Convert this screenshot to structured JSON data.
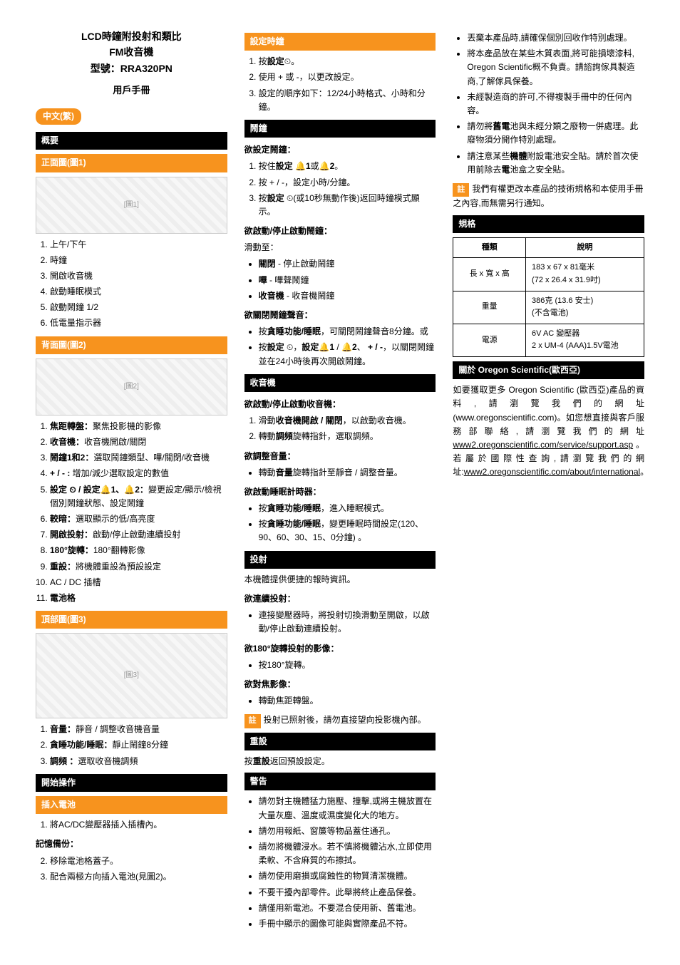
{
  "header": {
    "title": "LCD時鐘附投射和類比",
    "subtitle": "FM收音機",
    "model": "型號：RRA320PN",
    "manual": "用戶手冊"
  },
  "lang_tag": "中文(繁)",
  "col1": {
    "overview": "概要",
    "front_view": "正面圖(圖1)",
    "front_list": [
      "上午/下午",
      "時鐘",
      "開啟收音機",
      "啟動睡眠模式",
      "啟動鬧鐘 1/2",
      "低電量指示器"
    ],
    "back_view": "背面圖(圖2)",
    "back_list": [
      "焦距轉盤：聚焦投影機的影像",
      "收音機：收音機開啟/關閉",
      "鬧鐘1和2：選取鬧鐘類型、嗶/關閉/收音機",
      "+ / - : 增加/減少選取設定的數值",
      "設定 ⏲ / 設定🔔1、🔔2：變更設定/顯示/檢視個別鬧鐘狀態、設定鬧鐘",
      "較暗：選取顯示的低/高亮度",
      "開啟投射：啟動/停止啟動連續投射",
      "180°旋轉：180°翻轉影像",
      "重設：將機體重設為預設設定",
      "AC / DC 插槽",
      "電池格"
    ],
    "top_view": "頂部圖(圖3)",
    "top_list": [
      "音量：靜音 / 調整收音機音量",
      "貪睡功能/睡眠：靜止鬧鐘8分鐘",
      "調頻 ：選取收音機調頻"
    ],
    "start": "開始操作",
    "insert_battery": "插入電池",
    "battery_steps": [
      "將AC/DC變壓器插入插槽內。"
    ],
    "memory_backup_title": "記憶備份：",
    "memory_backup": [
      "移除電池格蓋子。",
      "配合兩極方向插入電池(見圖2)。"
    ]
  },
  "col2": {
    "set_clock": "設定時鐘",
    "set_clock_steps": [
      "按設定⏲。",
      "使用 + 或 -，以更改設定。",
      "設定的順序如下：12/24小時格式、小時和分鐘。"
    ],
    "alarm": "鬧鐘",
    "set_alarm_title": "欲設定鬧鐘：",
    "set_alarm_steps": [
      "按住設定 🔔1或🔔2。",
      "按 + / -，設定小時/分鐘。",
      "按設定 ⏲(或10秒無動作後)返回時鐘模式顯示。"
    ],
    "toggle_alarm_title": "欲啟動/停止啟動鬧鐘：",
    "slide_to": "滑動至：",
    "alarm_modes": [
      "關閉 - 停止啟動鬧鐘",
      "嗶 - 嗶聲鬧鐘",
      "收音機 - 收音機鬧鐘"
    ],
    "turn_off_sound_title": "欲關閉鬧鐘聲音：",
    "turn_off_sound": [
      "按貪睡功能/睡眠，可關閉鬧鐘聲音8分鐘。或",
      "按設定 ⏲，設定🔔1 / 🔔2、 + / -，以關閉鬧鐘並在24小時後再次開啟鬧鐘。"
    ],
    "radio": "收音機",
    "radio_toggle_title": "欲啟動/停止啟動收音機：",
    "radio_steps": [
      "滑動收音機開啟 / 關閉，以啟動收音機。",
      "轉動調頻旋轉指針，選取調頻。"
    ],
    "volume_title": "欲調整音量：",
    "volume_item": "轉動音量旋轉指針至靜音 / 調整音量。",
    "sleep_timer_title": "欲啟動睡眠計時器：",
    "sleep_timer": [
      "按貪睡功能/睡眠，進入睡眠模式。",
      "按貪睡功能/睡眠，變更睡眠時間設定(120、90、60、30、15、0分鐘) 。"
    ],
    "projection": "投射",
    "projection_intro": "本機體提供便捷的報時資訊。",
    "continuous_title": "欲連續投射：",
    "continuous_item": "連接變壓器時，將投射切換滑動至開啟，以啟動/停止啟動連續投射。",
    "rotate_title": "欲180°旋轉投射的影像：",
    "rotate_item": "按180°旋轉。",
    "focus_title": "欲對焦影像：",
    "focus_item": "轉動焦距轉盤。",
    "proj_note": "投射已照射後，請勿直接望向投影機內部。",
    "reset": "重設",
    "reset_text": "按重設返回預設設定。",
    "warning": "警告",
    "warnings": [
      "請勿對主機體猛力施壓、撞擊,或將主機放置在大量灰塵、溫度或濕度變化大的地方。",
      "請勿用報紙、窗簾等物品蓋住通孔。",
      "請勿將機體浸水。若不慎將機體沾水,立即使用柔軟、不含麻質的布擦拭。",
      "請勿使用磨損或腐蝕性的物質清潔機體。",
      "不要干擾內部零件。此舉將終止產品保養。",
      "請僅用新電池。不要混合使用新、舊電池。",
      "手冊中顯示的圖像可能與實際產品不符。"
    ]
  },
  "col3": {
    "extra_warnings": [
      "丟棄本產品時,請確保個別回收作特別處理。",
      "將本產品放在某些木質表面,將可能損壞漆料, Oregon Scientific概不負責。請諮詢傢具製造商,了解傢具保養。",
      "未經製造商的許可,不得複製手冊中的任何內容。",
      "請勿將舊電池與未經分類之廢物一併處理。此廢物須分開作特別處理。",
      "請注意某些機體附設電池安全貼。請於首次使用前除去電池盒之安全貼。"
    ],
    "rights_note": "我們有權更改本產品的技術規格和本使用手冊之內容,而無需另行通知。",
    "specs": "規格",
    "specs_headers": [
      "種類",
      "說明"
    ],
    "specs_rows": [
      [
        "長 x 寬 x 高",
        "183 x 67 x 81毫米\n(72 x 26.4 x 31.9吋)"
      ],
      [
        "重量",
        "386克 (13.6 安士)\n(不含電池)"
      ],
      [
        "電源",
        "6V AC 變壓器\n2 x UM-4 (AAA)1.5V電池"
      ]
    ],
    "about": "關於 Oregon Scientific(歐西亞)",
    "about_text1": "如要獲取更多 Oregon Scientific (歐西亞)產品的資料,請瀏覽我們的網址(www.oregonscientific.com)。如您想直接與客戶服務部聯絡,請瀏覽我們的網址",
    "about_link1": "www2.oregonscientific.com/service/support.asp",
    "about_text2": "。若屬於國際性查詢,請瀏覽我們的網址:",
    "about_link2": "www2.oregonscientific.com/about/international",
    "about_text3": "。"
  }
}
